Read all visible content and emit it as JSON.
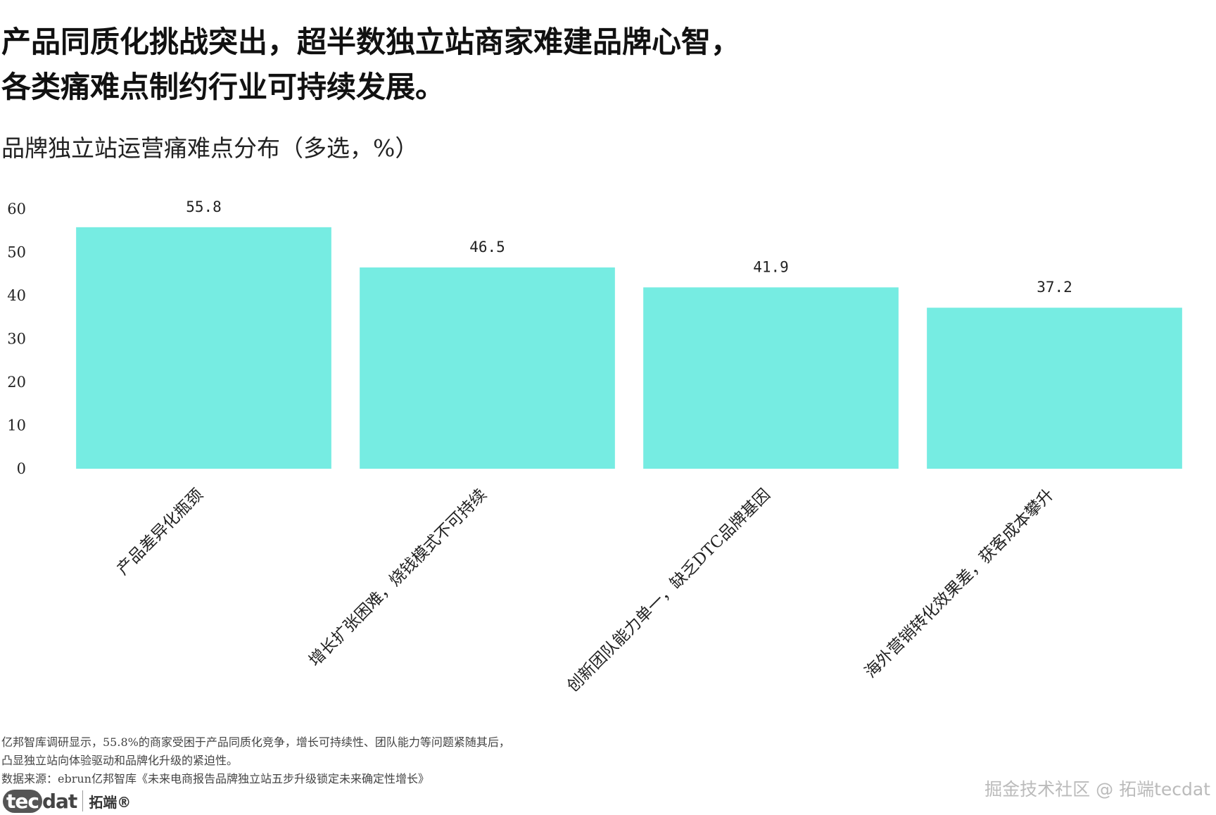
{
  "headline": {
    "line1": "产品同质化挑战突出，超半数独立站商家难建品牌心智，",
    "line2": "各类痛难点制约行业可持续发展。"
  },
  "chart_data": {
    "type": "bar",
    "title": "品牌独立站运营痛难点分布（多选，%）",
    "categories": [
      "产品差异化瓶颈",
      "增长扩张困难，烧钱模式不可持续",
      "创新团队能力单一，缺乏DTC品牌基因",
      "海外营销转化效果差，获客成本攀升"
    ],
    "values": [
      55.8,
      46.5,
      41.9,
      37.2
    ],
    "value_labels": [
      "55.8",
      "46.5",
      "41.9",
      "37.2"
    ],
    "yticks": [
      "0",
      "10",
      "20",
      "30",
      "40",
      "50",
      "60"
    ],
    "ylim": [
      0,
      60
    ],
    "grid": false,
    "bar_color": "#76ece2"
  },
  "footnote": {
    "line1": "亿邦智库调研显示，55.8%的商家受困于产品同质化竞争，增长可持续性、团队能力等问题紧随其后，",
    "line2": "凸显独立站向体验驱动和品牌化升级的紧迫性。",
    "source": "数据来源：ebrun亿邦智库《未来电商报告品牌独立站五步升级锁定未来确定性增长》"
  },
  "logo": {
    "text_tec": "tec",
    "text_dat": "dat",
    "text_cn": "拓端®"
  },
  "watermark": "掘金技术社区 @ 拓端tecdat"
}
